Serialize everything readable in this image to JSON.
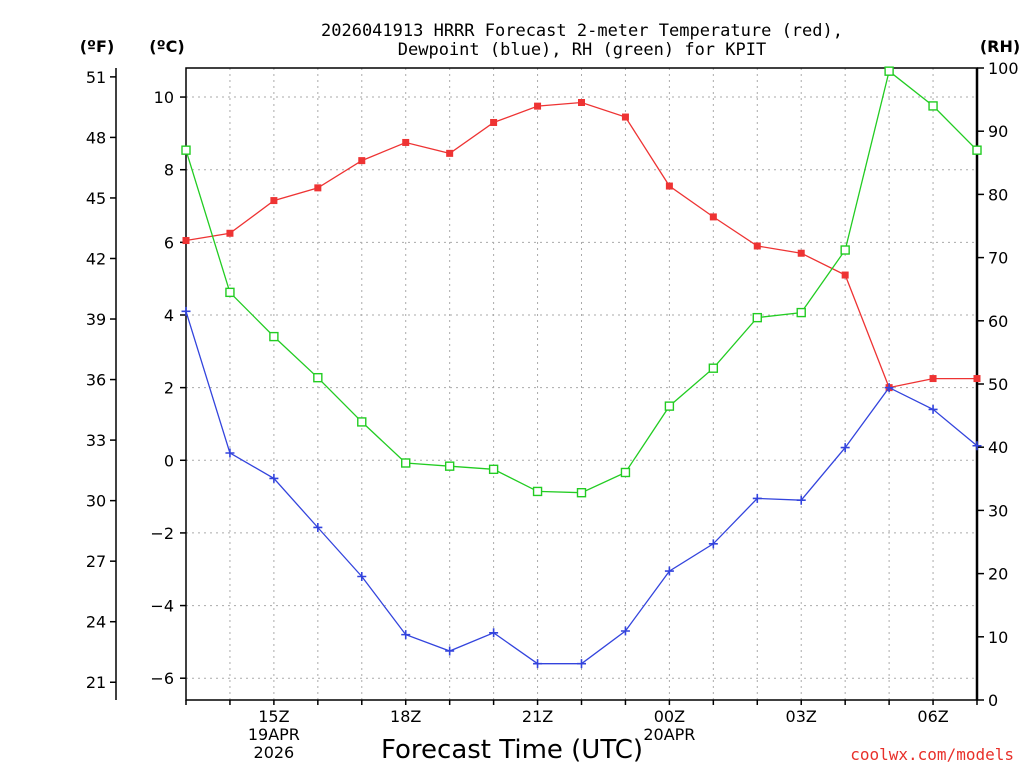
{
  "chart_data": {
    "type": "line",
    "title": "2026041913 HRRR Forecast 2-meter Temperature (red),",
    "subtitle": "Dewpoint (blue), RH (green) for KPIT",
    "xlabel": "Forecast Time (UTC)",
    "left_unit_f": "(ºF)",
    "left_unit_c": "(ºC)",
    "right_unit": "(RH)",
    "credit": "coolwx.com/models",
    "x_hours": [
      13,
      14,
      15,
      16,
      17,
      18,
      19,
      20,
      21,
      22,
      23,
      24,
      25,
      26,
      27,
      28,
      29,
      30,
      31
    ],
    "xlim": [
      13,
      31
    ],
    "x_ticks": [
      {
        "hour": 15,
        "lines": [
          "15Z",
          "19APR",
          "2026"
        ]
      },
      {
        "hour": 18,
        "lines": [
          "18Z"
        ]
      },
      {
        "hour": 21,
        "lines": [
          "21Z"
        ]
      },
      {
        "hour": 24,
        "lines": [
          "00Z",
          "20APR"
        ]
      },
      {
        "hour": 27,
        "lines": [
          "03Z"
        ]
      },
      {
        "hour": 30,
        "lines": [
          "06Z"
        ]
      }
    ],
    "y_celsius_ticks": [
      -6,
      -4,
      -2,
      0,
      2,
      4,
      6,
      8,
      10
    ],
    "ylim_celsius": [
      -6.6,
      10.8
    ],
    "y_fahrenheit_ticks": [
      21,
      24,
      27,
      30,
      33,
      36,
      39,
      42,
      45,
      48,
      51
    ],
    "y_rh_ticks": [
      0,
      10,
      20,
      30,
      40,
      50,
      60,
      70,
      80,
      90,
      100
    ],
    "ylim_rh": [
      0,
      100
    ],
    "series": [
      {
        "name": "Temperature",
        "axis": "celsius",
        "color": "#ee3333",
        "marker": "filled-square",
        "values": [
          6.05,
          6.25,
          7.15,
          7.5,
          8.25,
          8.75,
          8.45,
          9.3,
          9.75,
          9.85,
          9.45,
          7.55,
          6.7,
          5.9,
          5.7,
          5.1,
          2.0,
          2.25,
          2.25
        ]
      },
      {
        "name": "Dewpoint",
        "axis": "celsius",
        "color": "#3344dd",
        "marker": "plus",
        "values": [
          4.1,
          0.2,
          -0.5,
          -1.85,
          -3.2,
          -4.8,
          -5.25,
          -4.75,
          -5.6,
          -5.6,
          -4.7,
          -3.05,
          -2.3,
          -1.05,
          -1.1,
          0.35,
          2.0,
          1.4,
          0.4
        ]
      },
      {
        "name": "RH",
        "axis": "rh",
        "color": "#22cc22",
        "marker": "open-square",
        "values": [
          87,
          64.5,
          57.5,
          51,
          44,
          37.5,
          37,
          36.5,
          33,
          32.8,
          36,
          46.5,
          52.5,
          60.5,
          61.3,
          71.2,
          99.5,
          94,
          87
        ]
      }
    ]
  }
}
